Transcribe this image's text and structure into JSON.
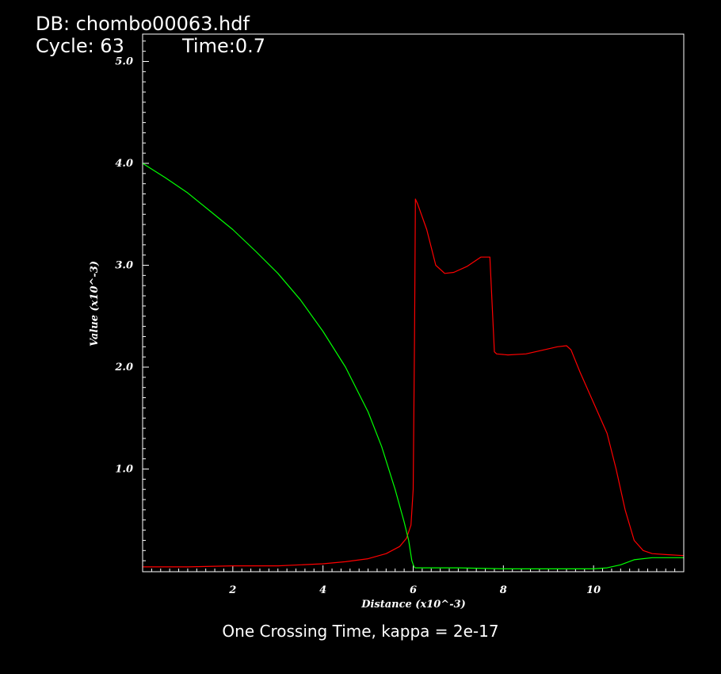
{
  "header": {
    "db_label": "DB: chombo00063.hdf",
    "cycle_label": "Cycle: 63",
    "time_label": "Time:0.7"
  },
  "caption": "One Crossing Time, kappa = 2e-17",
  "colors": {
    "background": "#000000",
    "frame": "#ffffff",
    "red_series": "#ff0000",
    "green_series": "#00ff00"
  },
  "chart_data": {
    "type": "line",
    "title": "",
    "xlabel": "Distance (x10^-3)",
    "ylabel": "Value (x10^-3)",
    "xlim": [
      0,
      12
    ],
    "ylim": [
      0,
      5.3
    ],
    "x_ticks": [
      {
        "v": 2,
        "label": "2"
      },
      {
        "v": 4,
        "label": "4"
      },
      {
        "v": 6,
        "label": "6"
      },
      {
        "v": 8,
        "label": "8"
      },
      {
        "v": 10,
        "label": "10"
      }
    ],
    "y_ticks": [
      {
        "v": 1,
        "label": "1.0"
      },
      {
        "v": 2,
        "label": "2.0"
      },
      {
        "v": 3,
        "label": "3.0"
      },
      {
        "v": 4,
        "label": "4.0"
      },
      {
        "v": 5,
        "label": "5.0"
      }
    ],
    "series": [
      {
        "color": "#ff0000",
        "x": [
          0,
          1,
          2,
          3,
          4,
          4.5,
          5,
          5.4,
          5.7,
          5.85,
          5.95,
          6.0,
          6.03,
          6.05,
          6.1,
          6.3,
          6.5,
          6.7,
          6.9,
          7.2,
          7.5,
          7.7,
          7.8,
          7.85,
          8.1,
          8.5,
          8.9,
          9.2,
          9.4,
          9.5,
          9.7,
          10.0,
          10.3,
          10.5,
          10.7,
          10.9,
          11.1,
          11.3,
          11.6,
          12.0
        ],
        "y": [
          0.04,
          0.04,
          0.05,
          0.05,
          0.07,
          0.09,
          0.12,
          0.17,
          0.24,
          0.32,
          0.45,
          0.8,
          2.3,
          3.65,
          3.6,
          3.35,
          3.0,
          2.92,
          2.93,
          2.99,
          3.08,
          3.08,
          2.15,
          2.13,
          2.12,
          2.13,
          2.17,
          2.2,
          2.21,
          2.17,
          1.95,
          1.65,
          1.35,
          1.0,
          0.6,
          0.3,
          0.2,
          0.17,
          0.16,
          0.15
        ]
      },
      {
        "color": "#00ff00",
        "x": [
          0,
          0.5,
          1,
          1.5,
          2,
          2.5,
          3,
          3.5,
          4,
          4.5,
          5,
          5.3,
          5.6,
          5.8,
          5.9,
          5.97,
          6.02,
          6.05,
          6.3,
          7,
          8,
          9,
          9.5,
          10,
          10.3,
          10.6,
          10.9,
          11.3,
          12.0
        ],
        "y": [
          4.0,
          3.86,
          3.71,
          3.53,
          3.35,
          3.14,
          2.92,
          2.66,
          2.35,
          2.0,
          1.56,
          1.22,
          0.8,
          0.48,
          0.3,
          0.1,
          0.04,
          0.03,
          0.03,
          0.03,
          0.02,
          0.02,
          0.02,
          0.02,
          0.03,
          0.06,
          0.11,
          0.13,
          0.13
        ]
      }
    ]
  }
}
